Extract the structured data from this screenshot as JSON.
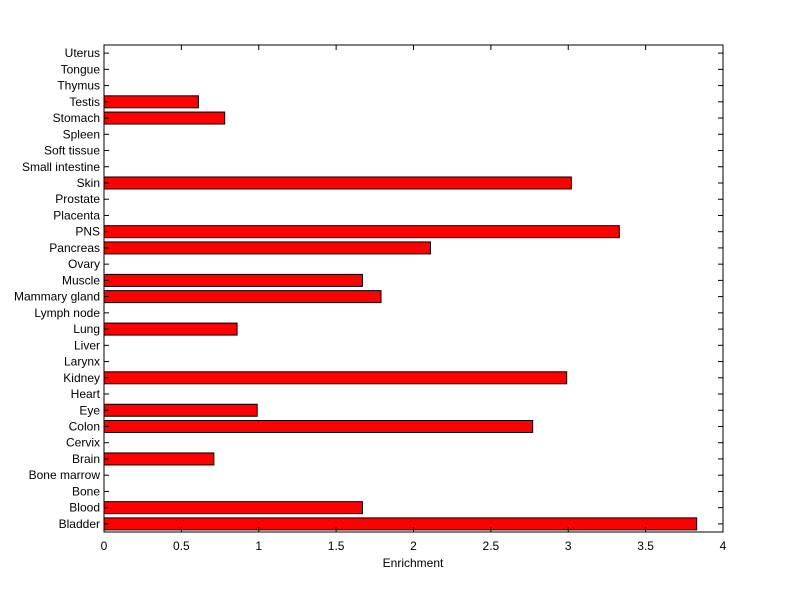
{
  "chart_data": {
    "type": "bar",
    "orientation": "horizontal",
    "title": "",
    "xlabel": "Enrichment",
    "ylabel": "",
    "xlim": [
      0,
      4
    ],
    "x_ticks": [
      0,
      0.5,
      1,
      1.5,
      2,
      2.5,
      3,
      3.5,
      4
    ],
    "x_tick_labels": [
      "0",
      "0.5",
      "1",
      "1.5",
      "2",
      "2.5",
      "3",
      "3.5",
      "4"
    ],
    "grid": false,
    "legend": "none",
    "bar_color": "#ff0000",
    "bar_edge_color": "#000000",
    "categories": [
      "Bladder",
      "Blood",
      "Bone",
      "Bone marrow",
      "Brain",
      "Cervix",
      "Colon",
      "Eye",
      "Heart",
      "Kidney",
      "Larynx",
      "Liver",
      "Lung",
      "Lymph node",
      "Mammary gland",
      "Muscle",
      "Ovary",
      "Pancreas",
      "PNS",
      "Placenta",
      "Prostate",
      "Skin",
      "Small intestine",
      "Soft tissue",
      "Spleen",
      "Stomach",
      "Testis",
      "Thymus",
      "Tongue",
      "Uterus"
    ],
    "values": [
      3.83,
      1.67,
      0,
      0,
      0.71,
      0,
      2.77,
      0.99,
      0,
      2.99,
      0,
      0,
      0.86,
      0,
      1.79,
      1.67,
      0,
      2.11,
      3.33,
      0,
      0,
      3.02,
      0,
      0,
      0,
      0.78,
      0.61,
      0,
      0,
      0
    ]
  }
}
